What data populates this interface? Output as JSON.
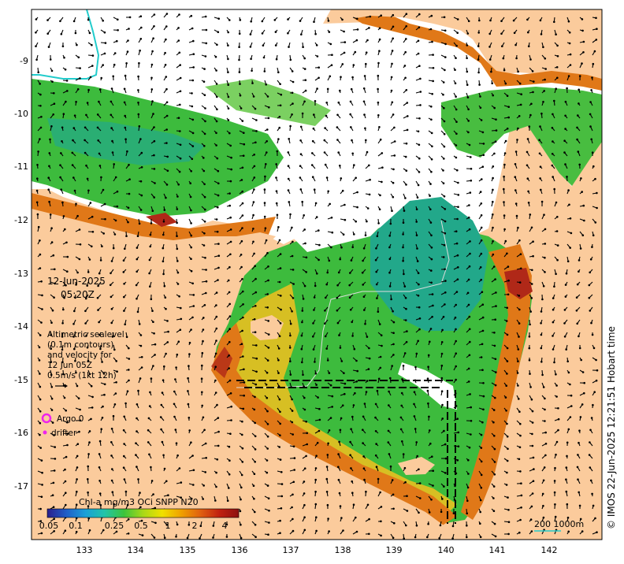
{
  "map": {
    "date": "12-Jun-2025",
    "time": "05:20Z",
    "altimetry_note": [
      "Altimetric sealevel",
      "(0.1m contours)",
      "and velocity for",
      "12 Jun 05Z",
      "0.5m/s (1kt 12h)"
    ],
    "legend": {
      "argo_label": "Argo 0",
      "drifter_label": "drifter",
      "argo_color": "#ee22ee",
      "drifter_color": "#ee22ee"
    },
    "colorbar": {
      "title": "Chl-a mg/m3 OCi SNPP N20",
      "ticks": [
        "0.05",
        "0.1",
        "0.25",
        "0.5",
        "1",
        "2",
        "4"
      ],
      "colors": [
        "#2a1e8c",
        "#1f5ec8",
        "#1aa0d8",
        "#22c4a8",
        "#3cc43c",
        "#a8d818",
        "#f0e000",
        "#f0a000",
        "#e06010",
        "#c02010",
        "#8c1010"
      ]
    },
    "scale_label": "200  1000m",
    "credit": "© IMOS 22-Jun-2025 12:21:51 Hobart time",
    "x_ticks": [
      "133",
      "134",
      "135",
      "136",
      "137",
      "138",
      "139",
      "140",
      "141",
      "142"
    ],
    "y_ticks": [
      "-9",
      "-10",
      "-11",
      "-12",
      "-13",
      "-14",
      "-15",
      "-16",
      "-17"
    ],
    "colors": {
      "land": "#fbcb9c",
      "cloud": "#ffffff",
      "ocean_green": "#3dbb3d",
      "ocean_teal": "#22a88a",
      "coast_yellow": "#e8c020",
      "coast_orange": "#e07818",
      "coast_red": "#b02818",
      "arrow": "#000000",
      "river": "#22cccc"
    }
  }
}
